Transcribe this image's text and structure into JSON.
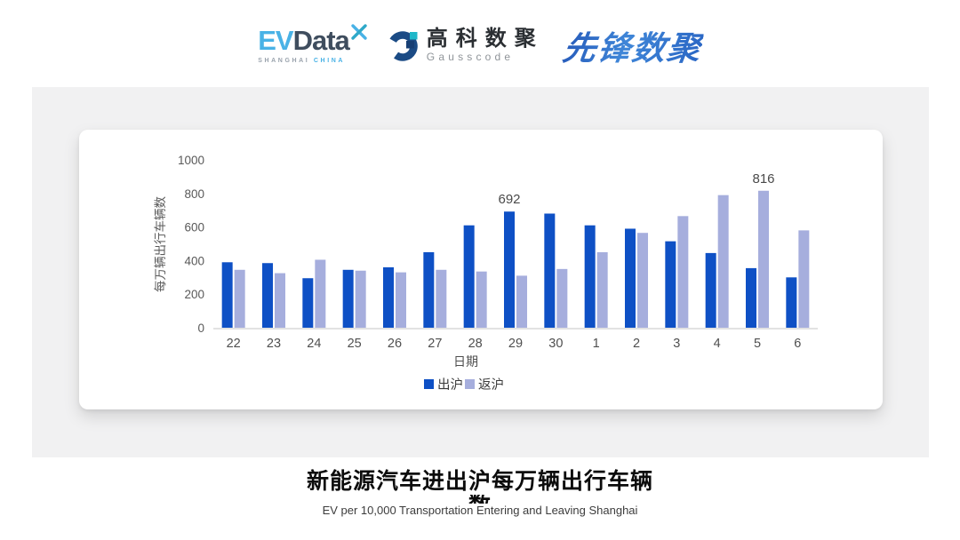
{
  "header": {
    "evdata": {
      "ev": "EV",
      "data": "Data",
      "sub_left": "SHANGHAI",
      "sub_right": "CHINA"
    },
    "gausscode": {
      "cn": "高科数聚",
      "en": "Gausscode"
    },
    "xianfeng": {
      "text": "先锋数聚"
    }
  },
  "chart_data": {
    "type": "bar",
    "title": "",
    "xlabel": "日期",
    "ylabel": "每万辆出行车辆数",
    "categories": [
      "22",
      "23",
      "24",
      "25",
      "26",
      "27",
      "28",
      "29",
      "30",
      "1",
      "2",
      "3",
      "4",
      "5",
      "6"
    ],
    "series": [
      {
        "name": "出沪",
        "color": "#0e50c5",
        "values": [
          390,
          385,
          295,
          345,
          360,
          450,
          610,
          692,
          680,
          610,
          590,
          515,
          445,
          355,
          300
        ]
      },
      {
        "name": "返沪",
        "color": "#a6aedd",
        "values": [
          345,
          325,
          405,
          340,
          330,
          345,
          335,
          310,
          350,
          450,
          565,
          665,
          790,
          816,
          580
        ]
      }
    ],
    "point_labels": [
      {
        "series": 0,
        "index": 7,
        "text": "692"
      },
      {
        "series": 1,
        "index": 13,
        "text": "816"
      }
    ],
    "ylim": [
      0,
      1000
    ],
    "yticks": [
      0,
      200,
      400,
      600,
      800,
      1000
    ],
    "grid": false,
    "legend_position": "bottom"
  },
  "caption": {
    "title_line1": "新能源汽车进出沪每万辆出行车辆",
    "title_line2": "数",
    "subtitle": "EV per 10,000 Transportation Entering and Leaving Shanghai"
  },
  "colors": {
    "accent_blue": "#0e50c5",
    "accent_periwinkle": "#a6aedd",
    "card_bg": "#f1f1f2",
    "evdata_blue": "#49b2e6",
    "gausscode_navy": "#1b4b85",
    "gausscode_teal": "#1eb7c9"
  }
}
